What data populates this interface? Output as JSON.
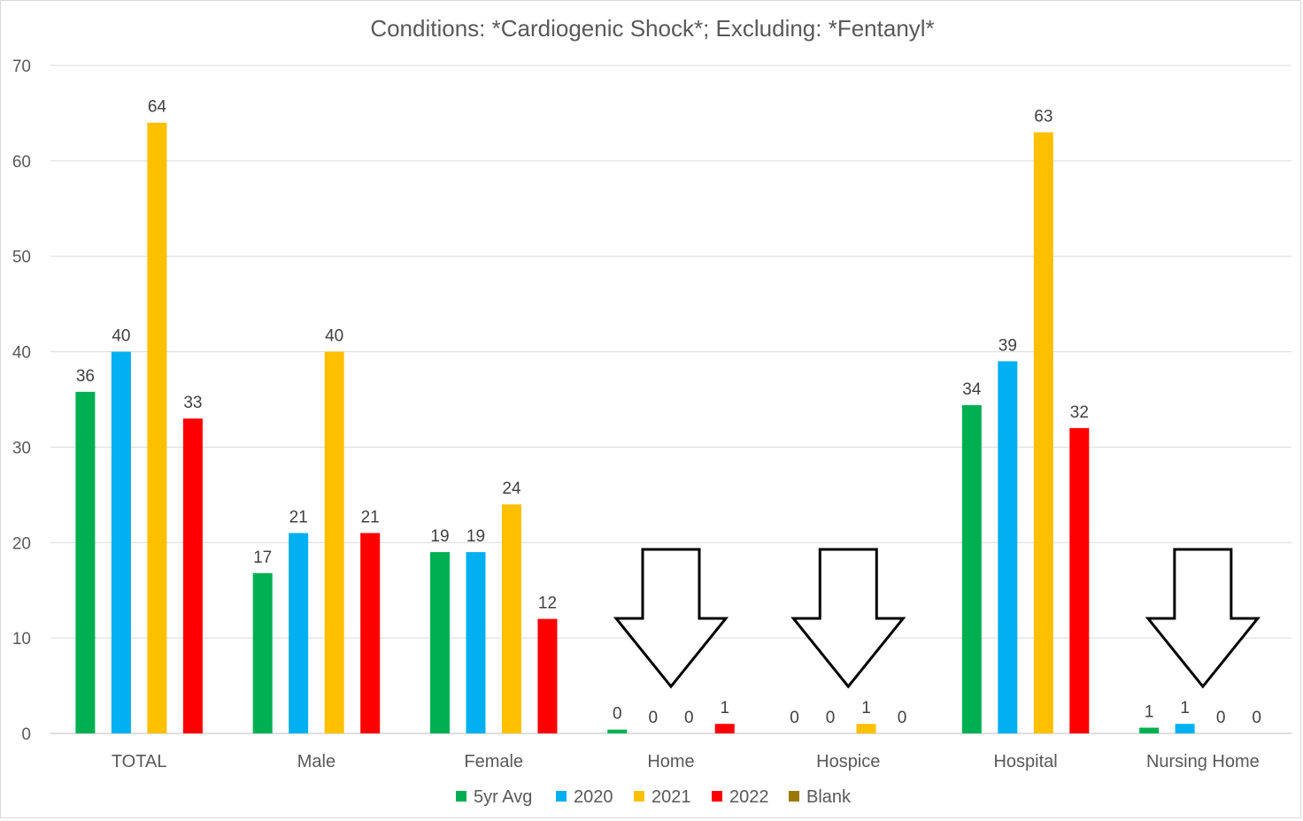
{
  "chart_data": {
    "type": "bar",
    "title": "Conditions: *Cardiogenic Shock*;  Excluding: *Fentanyl*",
    "xlabel": "",
    "ylabel": "",
    "ylim": [
      0,
      70
    ],
    "yticks": [
      0,
      10,
      20,
      30,
      40,
      50,
      60,
      70
    ],
    "grid": true,
    "legend_position": "bottom",
    "categories": [
      "TOTAL",
      "Male",
      "Female",
      "Home",
      "Hospice",
      "Hospital",
      "Nursing Home"
    ],
    "series": [
      {
        "name": "5yr Avg",
        "color": "#00b050",
        "values": [
          35.8,
          16.8,
          19,
          0.4,
          0,
          34.4,
          0.6
        ],
        "labels": [
          "36",
          "17",
          "19",
          "0",
          "0",
          "34",
          "1"
        ]
      },
      {
        "name": "2020",
        "color": "#00b0f0",
        "values": [
          40,
          21,
          19,
          0,
          0,
          39,
          1
        ],
        "labels": [
          "40",
          "21",
          "19",
          "0",
          "0",
          "39",
          "1"
        ]
      },
      {
        "name": "2021",
        "color": "#ffc000",
        "values": [
          64,
          40,
          24,
          0,
          1,
          63,
          0
        ],
        "labels": [
          "64",
          "40",
          "24",
          "0",
          "1",
          "63",
          "0"
        ]
      },
      {
        "name": "2022",
        "color": "#ff0000",
        "values": [
          33,
          21,
          12,
          1,
          0,
          32,
          0
        ],
        "labels": [
          "33",
          "21",
          "12",
          "1",
          "0",
          "32",
          "0"
        ]
      },
      {
        "name": "Blank",
        "color": "#9c7800",
        "values": [
          null,
          null,
          null,
          null,
          null,
          null,
          null
        ],
        "labels": []
      }
    ],
    "annotations": [
      {
        "type": "down-arrow",
        "category": "Home"
      },
      {
        "type": "down-arrow",
        "category": "Hospice"
      },
      {
        "type": "down-arrow",
        "category": "Nursing Home"
      }
    ]
  }
}
